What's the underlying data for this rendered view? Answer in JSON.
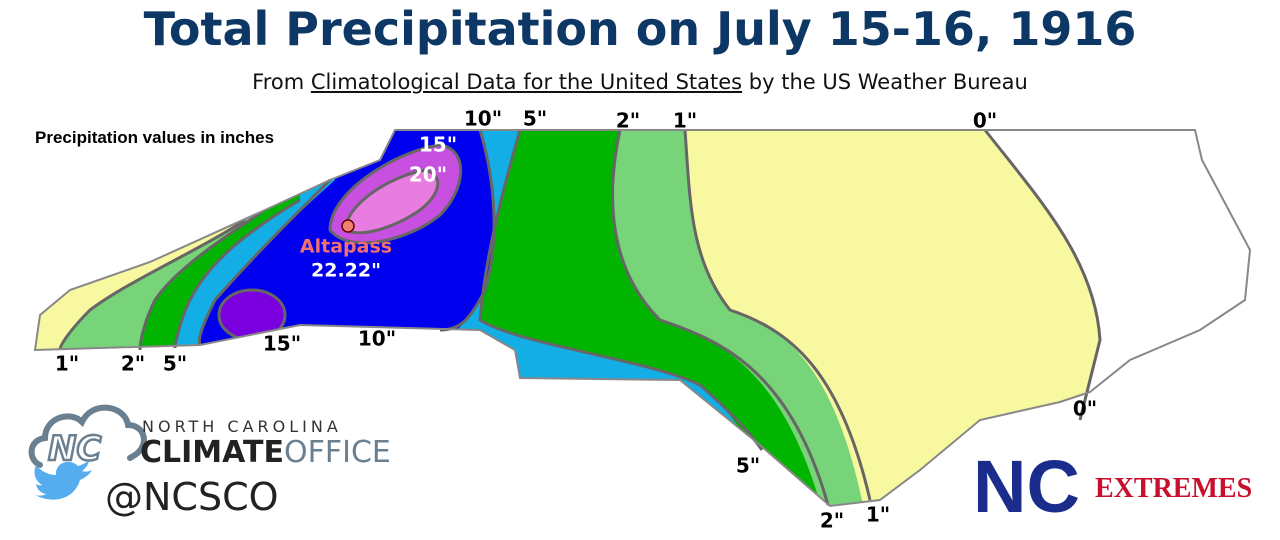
{
  "title": "Total Precipitation on July 15-16, 1916",
  "subtitle": {
    "prefix": "From",
    "source": "Climatological Data for the United States",
    "suffix": "by the US Weather Bureau"
  },
  "note": "Precipitation values in inches",
  "station": {
    "name": "Altapass",
    "value": "22.22\""
  },
  "contour_labels": [
    "10\"",
    "5\"",
    "2\"",
    "1\"",
    "0\"",
    "15\"",
    "20\"",
    "1\"",
    "2\"",
    "5\"",
    "15\"",
    "10\"",
    "0\"",
    "5\"",
    "2\"",
    "1\""
  ],
  "logos": {
    "org_line1": "NORTH CAROLINA",
    "org_climate": "CLIMATE",
    "org_office": "OFFICE",
    "handle": "@NCSCO",
    "nc": "NC",
    "extremes": "EXTREMES"
  }
}
